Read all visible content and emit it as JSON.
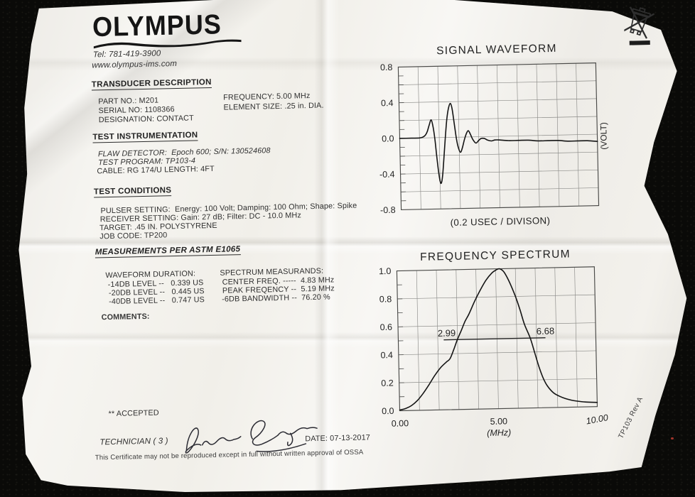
{
  "page": {
    "background": "#0a0a08",
    "paper": "#f4f3ef",
    "ink": "#2e2e2e"
  },
  "header": {
    "logo": "OLYMPUS",
    "tel": "Tel: 781-419-3900",
    "website": "www.olympus-ims.com"
  },
  "transducer_description": {
    "title": "TRANSDUCER DESCRIPTION",
    "part_no": "PART NO.: M201",
    "serial_no": "SERIAL NO: 1108366",
    "designation": "DESIGNATION: CONTACT",
    "frequency": "FREQUENCY: 5.00 MHz",
    "element_size": "ELEMENT SIZE: .25 in. DIA."
  },
  "test_instrumentation": {
    "title": "TEST INSTRUMENTATION",
    "flaw_detector": "FLAW DETECTOR:  Epoch 600; S/N: 130524608",
    "test_program": "TEST PROGRAM: TP103-4",
    "cable": "CABLE: RG 174/U LENGTH: 4FT"
  },
  "test_conditions": {
    "title": "TEST CONDITIONS",
    "pulser": "PULSER SETTING:  Energy: 100 Volt; Damping: 100 Ohm; Shape: Spike",
    "receiver": "RECEIVER SETTING: Gain: 27 dB; Filter: DC - 10.0 MHz",
    "target": "TARGET: .45 IN. POLYSTYRENE",
    "job_code": "JOB CODE: TP200"
  },
  "measurements": {
    "title": "MEASUREMENTS PER ASTM E1065",
    "waveform_duration": {
      "title": "WAVEFORM DURATION:",
      "levels": [
        "-14DB LEVEL --   0.339 US",
        "-20DB LEVEL --   0.445 US",
        "-40DB LEVEL --   0.747 US"
      ]
    },
    "spectrum_measurands": {
      "title": "SPECTRUM MEASURANDS:",
      "levels": [
        "CENTER FREQ. -----  4.83 MHz",
        "PEAK FREQENCY --  5.19 MHz",
        "-6DB BANDWIDTH --  76.20 %"
      ]
    }
  },
  "comments": {
    "title": "COMMENTS:"
  },
  "footer": {
    "accepted": "** ACCEPTED",
    "technician": "TECHNICIAN ( 3 )",
    "signature_name": "David Santiago",
    "date": "DATE: 07-13-2017",
    "fine_print": "This Certificate may not be reproduced except in full without written approval of OSSA",
    "doc_rev": "TP103 Rev A"
  },
  "icons": {
    "weee": "weee-crossed-out-wheeled-bin"
  },
  "chart_data": [
    {
      "type": "line",
      "title": "SIGNAL WAVEFORM",
      "xlabel": "(0.2 USEC / DIVISON)",
      "ylabel_right": "(VOLT)",
      "x_unit": "divisions (0.2 usec each)",
      "xlim": [
        0,
        10
      ],
      "ylim": [
        -0.8,
        0.8
      ],
      "yticks": [
        "0.8",
        "0.4",
        "0.0",
        "-0.4",
        "-0.8"
      ],
      "grid": {
        "cols": 10,
        "rows": 8,
        "on": true
      },
      "legend": "none",
      "series": [
        {
          "name": "rf-waveform",
          "x": [
            0,
            0.6,
            1.0,
            1.18,
            1.3,
            1.4,
            1.5,
            1.61,
            1.7,
            1.78,
            1.85,
            1.93,
            2.0,
            2.06,
            2.13,
            2.2,
            2.3,
            2.4,
            2.5,
            2.6,
            2.68,
            2.77,
            2.87,
            2.96,
            3.06,
            3.16,
            3.27,
            3.38,
            3.48,
            3.58,
            3.7,
            3.85,
            4.0,
            4.12,
            4.28,
            4.45,
            4.65,
            4.8,
            5.0,
            5.5,
            6.0,
            6.5,
            7.0,
            7.5,
            8.0,
            8.5,
            9.0,
            9.5,
            10
          ],
          "y": [
            0,
            0,
            0,
            0.01,
            0.03,
            0.07,
            0.14,
            0.2,
            0.12,
            -0.02,
            -0.2,
            -0.38,
            -0.49,
            -0.51,
            -0.43,
            -0.27,
            -0.02,
            0.2,
            0.33,
            0.38,
            0.32,
            0.16,
            -0.02,
            -0.12,
            -0.17,
            -0.12,
            -0.03,
            0.04,
            0.07,
            0.03,
            -0.03,
            -0.07,
            -0.04,
            -0.02,
            -0.02,
            -0.04,
            -0.05,
            -0.04,
            -0.04,
            -0.05,
            -0.05,
            -0.05,
            -0.06,
            -0.06,
            -0.06,
            -0.07,
            -0.07,
            -0.07,
            -0.08
          ]
        }
      ]
    },
    {
      "type": "line",
      "title": "FREQUENCY SPECTRUM",
      "xlabel": "(MHz)",
      "xlim": [
        0,
        10
      ],
      "ylim": [
        0,
        1
      ],
      "yticks": [
        "1.0",
        "0.8",
        "0.6",
        "0.4",
        "0.2",
        "0.0"
      ],
      "xticks": [
        {
          "label": "0.00",
          "x": 0
        },
        {
          "label": "5.00",
          "x": 5
        },
        {
          "label": "10.00",
          "x": 10,
          "tilt": -9,
          "italic": true
        }
      ],
      "grid": {
        "cols": 10,
        "rows": 5,
        "on": true
      },
      "legend": "none",
      "annotations": {
        "bandwidth_line": {
          "y": 0.5,
          "x1": 2.3,
          "x2": 7.45
        },
        "labels": [
          {
            "text": "2.99",
            "x": 2.0
          },
          {
            "text": "6.68",
            "x": 7.0
          }
        ]
      },
      "series": [
        {
          "name": "spectrum",
          "x": [
            0,
            0.3,
            0.6,
            0.9,
            1.2,
            1.5,
            1.8,
            2.1,
            2.4,
            2.6,
            2.8,
            2.99,
            3.2,
            3.4,
            3.6,
            3.9,
            4.2,
            4.5,
            4.8,
            5.0,
            5.19,
            5.4,
            5.6,
            5.8,
            6.0,
            6.2,
            6.4,
            6.68,
            6.9,
            7.1,
            7.3,
            7.5,
            7.8,
            8.1,
            8.4,
            8.7,
            9.0,
            9.4,
            10
          ],
          "y": [
            0.005,
            0.015,
            0.035,
            0.07,
            0.12,
            0.18,
            0.245,
            0.3,
            0.34,
            0.365,
            0.43,
            0.5,
            0.565,
            0.63,
            0.68,
            0.77,
            0.85,
            0.92,
            0.97,
            0.99,
            1.0,
            0.98,
            0.93,
            0.865,
            0.79,
            0.7,
            0.6,
            0.5,
            0.39,
            0.29,
            0.21,
            0.155,
            0.105,
            0.08,
            0.062,
            0.05,
            0.042,
            0.035,
            0.03
          ]
        }
      ]
    }
  ]
}
